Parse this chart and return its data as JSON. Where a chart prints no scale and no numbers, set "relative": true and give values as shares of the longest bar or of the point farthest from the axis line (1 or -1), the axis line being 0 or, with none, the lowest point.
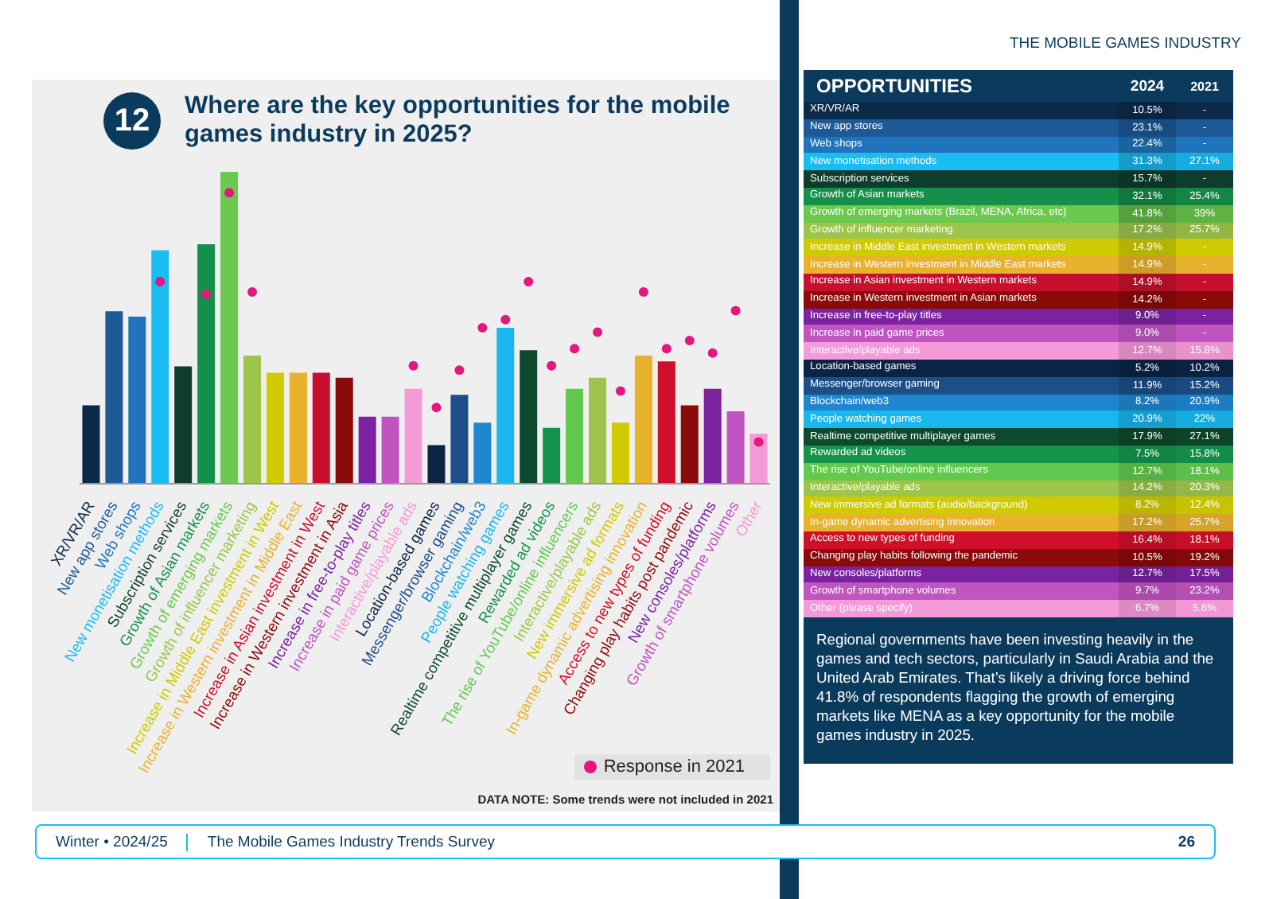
{
  "chart_data": [
    {
      "type": "bar",
      "title": "Where are the key opportunities for the mobile games industry in 2025?",
      "relative": true,
      "legend": "bottom right",
      "marker": "circle",
      "categories": [
        "XR/VR/AR",
        "New app stores",
        "Web shops",
        "New monetisation methods",
        "Subscription services",
        "Growth of Asian markets",
        "Growth of emerging markets",
        "Growth of influencer marketing",
        "Increase in Middle East investment in West",
        "Increase in Western investment in Middle East",
        "Increase in Asian investment in West",
        "Increase in Western investment in Asia",
        "Increase in free-to-play titles",
        "Increase in paid game prices",
        "Interactive/playable ads",
        "Location-based games",
        "Messenger/browser gaming",
        "Blockchain/web3",
        "People watching games",
        "Realtime competitive multiplayer games",
        "Rewarded ad videos",
        "The rise of YouTube/online influencers",
        "Interactive/playable ads",
        "New immersive ad formats",
        "In-game dynamic advertising innovation",
        "Access to new types of funding",
        "Changing play habits post pandemic",
        "New consoles/platforms",
        "Growth of smartphone volumes",
        "Other"
      ],
      "series": [
        {
          "type": "bar",
          "colors": [
            "#0b2a4a",
            "#1d5a96",
            "#1f74bb",
            "#19bdf2",
            "#0d3d2b",
            "#15904a",
            "#6cc94f",
            "#9cc54a",
            "#cfcb00",
            "#e9b22c",
            "#c8102e",
            "#8b0a0a",
            "#7a22a0",
            "#c054c0",
            "#f59ad8",
            "#0b2444",
            "#1c4e88",
            "#1e86cf",
            "#18b8ef",
            "#0d4a2c",
            "#14934b",
            "#62c94e",
            "#9cc54a",
            "#cfcb00",
            "#e9b22c",
            "#d0102a",
            "#8b0a0a",
            "#7a22a0",
            "#c054c0",
            "#f59ad8"
          ],
          "values": [
            0.251,
            0.553,
            0.536,
            0.749,
            0.376,
            0.768,
            1,
            0.411,
            0.356,
            0.356,
            0.356,
            0.34,
            0.215,
            0.215,
            0.304,
            0.124,
            0.285,
            0.196,
            0.5,
            0.428,
            0.179,
            0.304,
            0.34,
            0.196,
            0.411,
            0.392,
            0.251,
            0.304,
            0.232,
            0.16
          ]
        },
        {
          "type": "scatter",
          "name": "Response in 2021",
          "color": "#e3177d",
          "values": [
            null,
            null,
            null,
            0.648,
            null,
            0.608,
            0.933,
            0.615,
            null,
            null,
            null,
            null,
            null,
            null,
            0.378,
            0.244,
            0.364,
            0.5,
            0.526,
            0.648,
            0.378,
            0.433,
            0.486,
            0.297,
            0.615,
            0.433,
            0.459,
            0.419,
            0.555,
            0.134
          ]
        }
      ],
      "annotations": [
        "12",
        "DATA NOTE: Some trends were not included in 2021",
        "THE MOBILE GAMES INDUSTRY",
        "Winter • 2024/25",
        "The Mobile Games Industry Trends Survey",
        "26"
      ]
    },
    {
      "type": "heatmap",
      "title": "OPPORTUNITIES",
      "categories": [
        "2024",
        "2021"
      ],
      "y_categories": [
        "XR/VR/AR",
        "New app stores",
        "Web shops",
        "New monetisation methods",
        "Subscription services",
        "Growth of Asian markets",
        "Growth of emerging markets (Brazil, MENA, Africa, etc)",
        "Growth of influencer marketing",
        "Increase in Middle East investment in Western markets",
        "Increase in Western investment in Middle East markets",
        "Increase in Asian investment in Western markets",
        "Increase in Western investment in Asian markets",
        "Increase in free-to-play titles",
        "Increase in paid game prices",
        "Interactive/playable ads",
        "Location-based games",
        "Messenger/browser gaming",
        "Blockchain/web3",
        "People watching games",
        "Realtime competitive multiplayer games",
        "Rewarded ad videos",
        "The rise of YouTube/online influencers",
        "Interactive/playable ads",
        "New immersive ad formats (audio/background)",
        "In-game dynamic advertising innovation",
        "Access to new types of funding",
        "Changing play habits following the pandemic",
        "New consoles/platforms",
        "Growth of smartphone volumes",
        "Other (please specify)"
      ],
      "colors": [
        "#0b2a4a",
        "#1d5a96",
        "#1f74bb",
        "#19bdf2",
        "#0d3d2b",
        "#15904a",
        "#6cc94f",
        "#9cc54a",
        "#cfcb00",
        "#e9b22c",
        "#c8102e",
        "#8b0a0a",
        "#7a22a0",
        "#c054c0",
        "#f59ad8",
        "#0b2444",
        "#1c4e88",
        "#1e86cf",
        "#18b8ef",
        "#0d4a2c",
        "#14934b",
        "#62c94e",
        "#9cc54a",
        "#cfcb00",
        "#e9b22c",
        "#d0102a",
        "#8b0a0a",
        "#7a22a0",
        "#c054c0",
        "#f59ad8"
      ],
      "cells": [
        [
          10.5,
          null
        ],
        [
          23.1,
          null
        ],
        [
          22.4,
          null
        ],
        [
          31.3,
          27.1
        ],
        [
          15.7,
          null
        ],
        [
          32.1,
          25.4
        ],
        [
          41.8,
          39
        ],
        [
          17.2,
          25.7
        ],
        [
          14.9,
          null
        ],
        [
          14.9,
          null
        ],
        [
          14.9,
          null
        ],
        [
          14.2,
          null
        ],
        [
          9.0,
          null
        ],
        [
          9.0,
          null
        ],
        [
          12.7,
          15.8
        ],
        [
          5.2,
          10.2
        ],
        [
          11.9,
          15.2
        ],
        [
          8.2,
          20.9
        ],
        [
          20.9,
          22
        ],
        [
          17.9,
          27.1
        ],
        [
          7.5,
          15.8
        ],
        [
          12.7,
          18.1
        ],
        [
          14.2,
          20.3
        ],
        [
          8.2,
          12.4
        ],
        [
          17.2,
          25.7
        ],
        [
          16.4,
          18.1
        ],
        [
          10.5,
          19.2
        ],
        [
          12.7,
          17.5
        ],
        [
          9.7,
          23.2
        ],
        [
          6.7,
          5.6
        ]
      ],
      "cell_labels": [
        [
          "10.5%",
          "-"
        ],
        [
          "23.1%",
          "-"
        ],
        [
          "22.4%",
          "-"
        ],
        [
          "31.3%",
          "27.1%"
        ],
        [
          "15.7%",
          "-"
        ],
        [
          "32.1%",
          "25.4%"
        ],
        [
          "41.8%",
          "39%"
        ],
        [
          "17.2%",
          "25.7%"
        ],
        [
          "14.9%",
          "-"
        ],
        [
          "14.9%",
          "-"
        ],
        [
          "14.9%",
          "-"
        ],
        [
          "14.2%",
          "-"
        ],
        [
          "9.0%",
          "-"
        ],
        [
          "9.0%",
          "-"
        ],
        [
          "12.7%",
          "15.8%"
        ],
        [
          "5.2%",
          "10.2%"
        ],
        [
          "11.9%",
          "15.2%"
        ],
        [
          "8.2%",
          "20.9%"
        ],
        [
          "20.9%",
          "22%"
        ],
        [
          "17.9%",
          "27.1%"
        ],
        [
          "7.5%",
          "15.8%"
        ],
        [
          "12.7%",
          "18.1%"
        ],
        [
          "14.2%",
          "20.3%"
        ],
        [
          "8.2%",
          "12.4%"
        ],
        [
          "17.2%",
          "25.7%"
        ],
        [
          "16.4%",
          "18.1%"
        ],
        [
          "10.5%",
          "19.2%"
        ],
        [
          "12.7%",
          "17.5%"
        ],
        [
          "9.7%",
          "23.2%"
        ],
        [
          "6.7%",
          "5.6%"
        ]
      ],
      "annotations": [
        "Regional governments have been investing heavily in the games and tech sectors, particularly in Saudi Arabia and the United Arab Emirates. That’s likely a driving force behind 41.8% of respondents flagging the growth of emerging markets like MENA as a key opportunity for the mobile games industry in 2025."
      ]
    }
  ]
}
